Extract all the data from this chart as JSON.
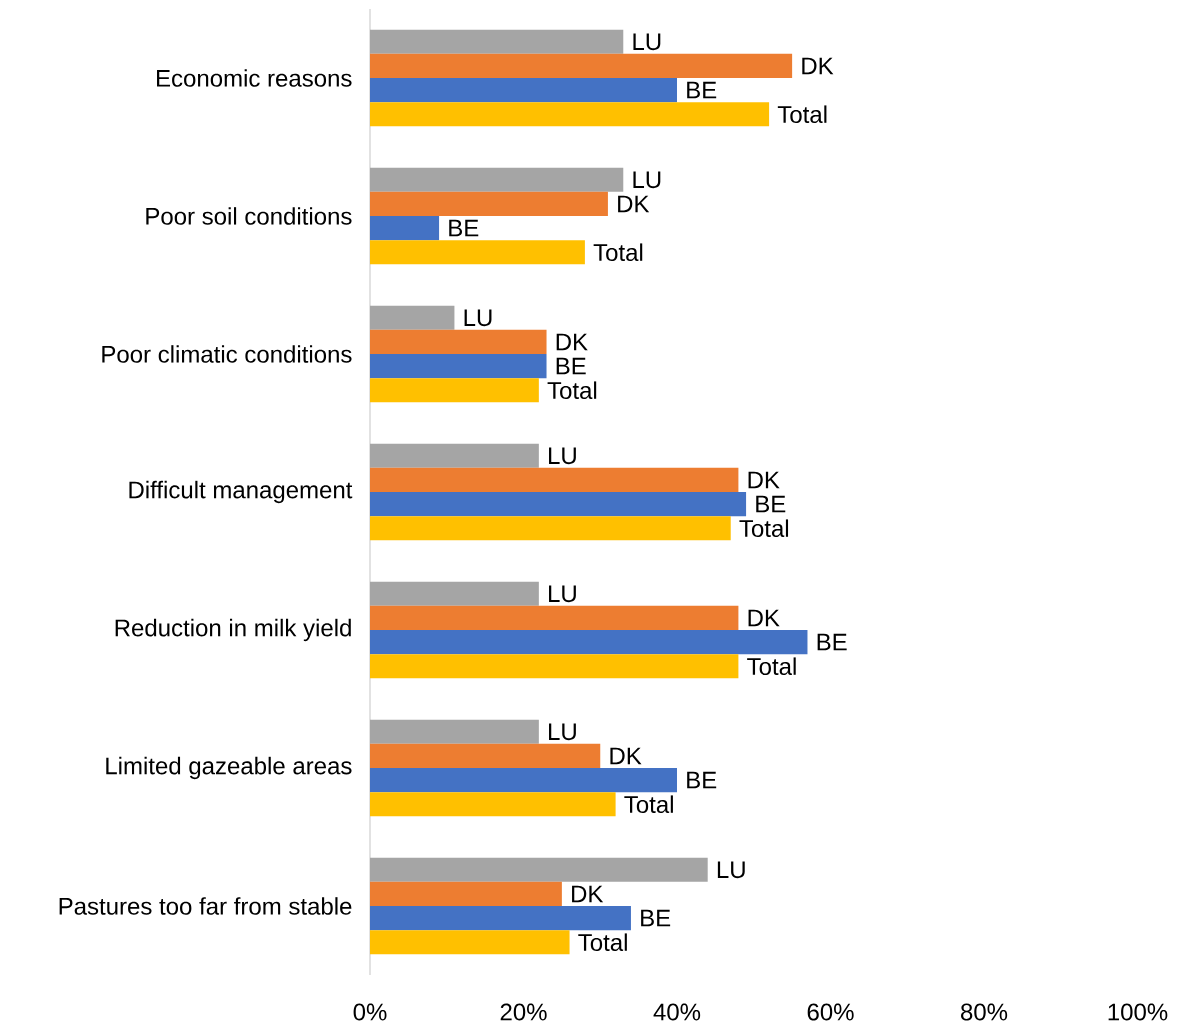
{
  "chart_data": {
    "type": "bar",
    "orientation": "horizontal",
    "categories": [
      "Economic reasons",
      "Poor soil conditions",
      "Poor climatic conditions",
      "Difficult management",
      "Reduction in milk yield",
      "Limited gazeable areas",
      "Pastures too far from stable"
    ],
    "series": [
      {
        "name": "LU",
        "color": "#a5a5a5",
        "values": [
          33,
          33,
          11,
          22,
          22,
          22,
          44
        ]
      },
      {
        "name": "DK",
        "color": "#ed7d31",
        "values": [
          55,
          31,
          23,
          48,
          48,
          30,
          25
        ]
      },
      {
        "name": "BE",
        "color": "#4472c4",
        "values": [
          40,
          9,
          23,
          49,
          57,
          40,
          34
        ]
      },
      {
        "name": "Total",
        "color": "#ffc000",
        "values": [
          52,
          28,
          22,
          47,
          48,
          32,
          26
        ]
      }
    ],
    "xlim": [
      0,
      100
    ],
    "xticks": [
      {
        "value": 0,
        "label": "0%"
      },
      {
        "value": 20,
        "label": "20%"
      },
      {
        "value": 40,
        "label": "40%"
      },
      {
        "value": 60,
        "label": "60%"
      },
      {
        "value": 80,
        "label": "80%"
      },
      {
        "value": 100,
        "label": "100%"
      }
    ]
  }
}
